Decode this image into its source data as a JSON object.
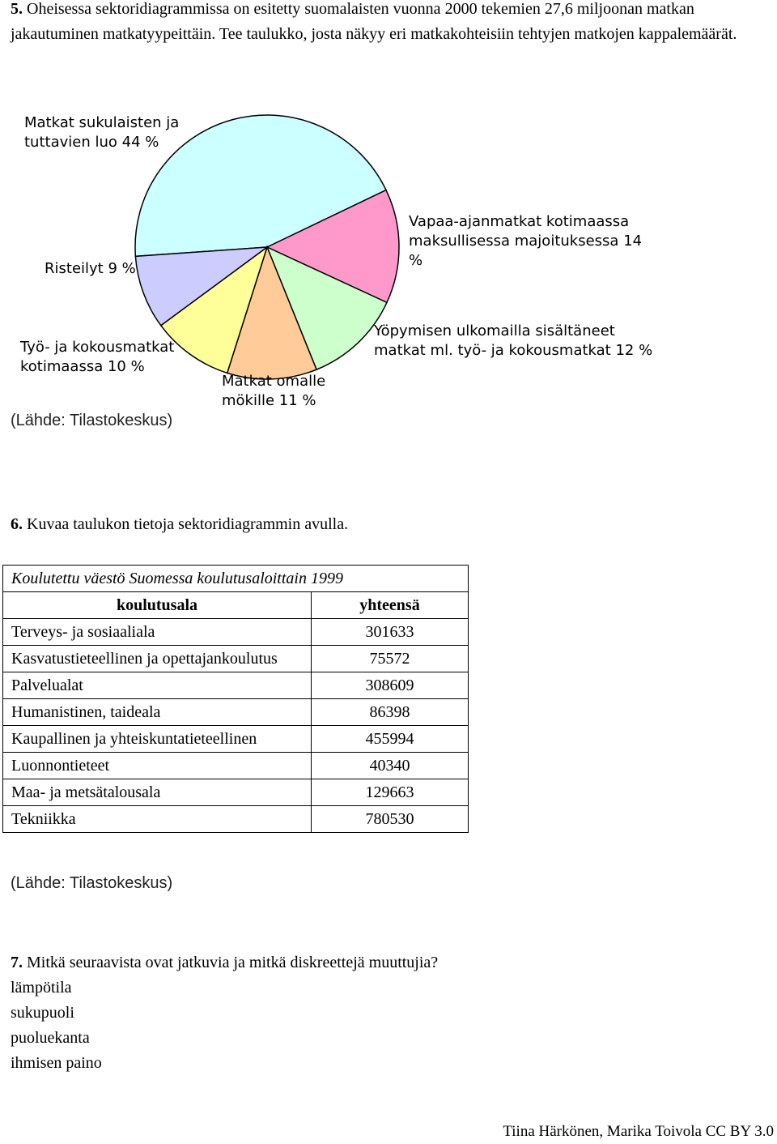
{
  "question5": {
    "number": "5.",
    "text": "Oheisessa sektoridiagrammissa on esitetty suomalaisten vuonna 2000 tekemien 27,6 miljoonan matkan jakautuminen matkatyypeittäin. Tee taulukko, josta näkyy eri matkakohteisiin tehtyjen matkojen kappalemäärät."
  },
  "chart_data": {
    "type": "pie",
    "categories": [
      "Matkat sukulaisten ja tuttavien luo",
      "Vapaa-ajanmatkat kotimaassa maksullisessa majoituksessa",
      "Yöpymisen ulkomailla sisältäneet matkat ml. työ- ja kokousmatkat",
      "Matkat omalle mökille",
      "Työ- ja kokousmatkat kotimaassa",
      "Risteilyt"
    ],
    "values": [
      44,
      14,
      12,
      11,
      10,
      9
    ],
    "value_labels": [
      "44 %",
      "14 %",
      "12 %",
      "11 %",
      "10 %",
      "9 %"
    ],
    "colors": [
      "#ccffff",
      "#ff99cc",
      "#ccffcc",
      "#ffcc99",
      "#ffff99",
      "#ccccff"
    ]
  },
  "source1": "(Lähde: Tilastokeskus)",
  "question6": {
    "number": "6.",
    "text": "Kuvaa taulukon tietoja sektoridiagrammin avulla."
  },
  "table": {
    "title": "Koulutettu väestö Suomessa koulutusaloittain 1999",
    "header": [
      "koulutusala",
      "yhteensä"
    ],
    "rows": [
      [
        "Terveys- ja sosiaaliala",
        301633
      ],
      [
        "Kasvatustieteellinen ja opettajankoulutus",
        75572
      ],
      [
        "Palvelualat",
        308609
      ],
      [
        "Humanistinen, taideala",
        86398
      ],
      [
        "Kaupallinen ja yhteiskuntatieteellinen",
        455994
      ],
      [
        "Luonnontieteet",
        40340
      ],
      [
        "Maa- ja metsätalousala",
        129663
      ],
      [
        "Tekniikka",
        780530
      ]
    ]
  },
  "source2": "(Lähde: Tilastokeskus)",
  "question7": {
    "number": "7.",
    "text": "Mitkä seuraavista ovat jatkuvia ja mitkä diskreettejä muuttujia?",
    "items": [
      "lämpötila",
      "sukupuoli",
      "puoluekanta",
      "ihmisen paino"
    ]
  },
  "footer": "Tiina Härkönen, Marika Toivola CC BY 3.0"
}
